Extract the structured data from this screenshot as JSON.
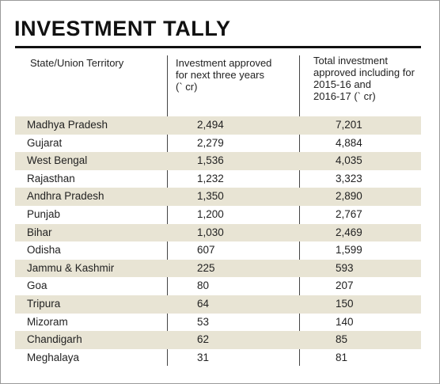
{
  "title": "INVESTMENT TALLY",
  "headers": {
    "state": "State/Union Territory",
    "investment_line1": "Investment approved",
    "investment_line2": "for next three years",
    "investment_line3": "(` cr)",
    "total_line1": "Total investment",
    "total_line2": "approved including for",
    "total_line3": "2015-16 and",
    "total_line4": "2016-17 (` cr)"
  },
  "rows": [
    {
      "state": "Madhya Pradesh",
      "investment": "2,494",
      "total": "7,201"
    },
    {
      "state": "Gujarat",
      "investment": "2,279",
      "total": "4,884"
    },
    {
      "state": "West Bengal",
      "investment": "1,536",
      "total": "4,035"
    },
    {
      "state": "Rajasthan",
      "investment": "1,232",
      "total": "3,323"
    },
    {
      "state": "Andhra Pradesh",
      "investment": "1,350",
      "total": "2,890"
    },
    {
      "state": "Punjab",
      "investment": "1,200",
      "total": "2,767"
    },
    {
      "state": "Bihar",
      "investment": "1,030",
      "total": "2,469"
    },
    {
      "state": "Odisha",
      "investment": "607",
      "total": "1,599"
    },
    {
      "state": "Jammu & Kashmir",
      "investment": "225",
      "total": "593"
    },
    {
      "state": "Goa",
      "investment": "80",
      "total": "207"
    },
    {
      "state": "Tripura",
      "investment": "64",
      "total": "150"
    },
    {
      "state": "Mizoram",
      "investment": "53",
      "total": "140"
    },
    {
      "state": "Chandigarh",
      "investment": "62",
      "total": "85"
    },
    {
      "state": "Meghalaya",
      "investment": "31",
      "total": "81"
    }
  ],
  "colors": {
    "shade": "#e8e4d4",
    "text": "#222222"
  }
}
